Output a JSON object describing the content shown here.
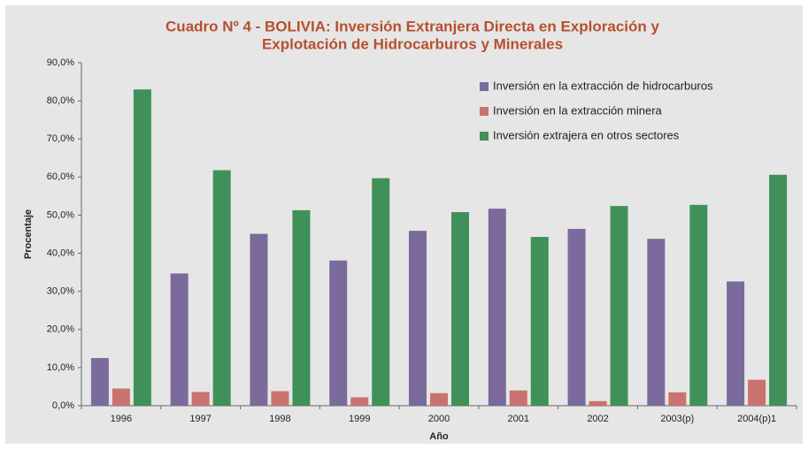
{
  "chart_data": {
    "type": "bar",
    "title": [
      "Cuadro Nº 4 - BOLIVIA: Inversión Extranjera Directa en Exploración y",
      "Explotación de Hidrocarburos y Minerales"
    ],
    "xlabel": "Año",
    "ylabel": "Procentaje",
    "categories": [
      "1996",
      "1997",
      "1998",
      "1999",
      "2000",
      "2001",
      "2002",
      "2003(p)",
      "2004(p)1"
    ],
    "series": [
      {
        "name": "Inversión en la extracción de hidrocarburos",
        "color": "#7a6b9c",
        "values": [
          12.5,
          34.7,
          45.1,
          38.1,
          45.9,
          51.7,
          46.4,
          43.8,
          32.6
        ]
      },
      {
        "name": "Inversión en la extracción minera",
        "color": "#c9726f",
        "values": [
          4.5,
          3.6,
          3.8,
          2.2,
          3.3,
          4.0,
          1.2,
          3.5,
          6.8
        ]
      },
      {
        "name": "Inversión extrajera en otros sectores",
        "color": "#3f9159",
        "values": [
          83.0,
          61.8,
          51.3,
          59.7,
          50.8,
          44.3,
          52.4,
          52.7,
          60.6
        ]
      }
    ],
    "ylim": [
      0,
      90
    ],
    "yticks": [
      {
        "value": 0,
        "label": "0,0%"
      },
      {
        "value": 10,
        "label": "10,0%"
      },
      {
        "value": 20,
        "label": "20,0%"
      },
      {
        "value": 30,
        "label": "30,0%"
      },
      {
        "value": 40,
        "label": "40,0%"
      },
      {
        "value": 50,
        "label": "50,0%"
      },
      {
        "value": 60,
        "label": "60,0%"
      },
      {
        "value": 70,
        "label": "70,0%"
      },
      {
        "value": 80,
        "label": "80,0%"
      },
      {
        "value": 90,
        "label": "90,0%"
      }
    ],
    "legend": "top-right",
    "grid": false
  }
}
